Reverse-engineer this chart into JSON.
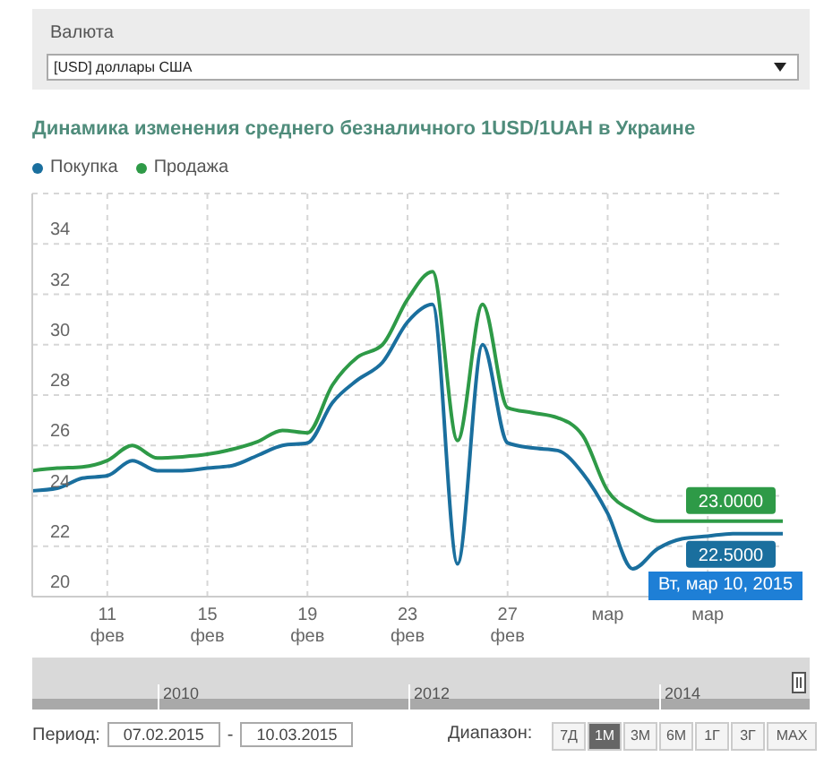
{
  "chart_data": {
    "type": "line",
    "title": "Динамика изменения среднего безналичного 1USD/1UAH в Украине",
    "categories": [
      null,
      null,
      null,
      "11 фев",
      null,
      null,
      null,
      "15 фев",
      null,
      null,
      null,
      "19 фев",
      null,
      null,
      null,
      "23 фев",
      null,
      null,
      null,
      "27 фев",
      null,
      null,
      null,
      "мар",
      null,
      null,
      null,
      "мар",
      null,
      null,
      null
    ],
    "series": [
      {
        "name": "Покупка",
        "color": "#1a6f9e",
        "values": [
          24.2,
          24.3,
          24.7,
          24.8,
          25.4,
          25.0,
          25.0,
          25.1,
          25.2,
          25.6,
          26.0,
          26.1,
          27.7,
          28.6,
          29.3,
          30.9,
          31.6,
          21.3,
          30.0,
          26.1,
          25.9,
          25.8,
          24.9,
          23.3,
          21.1,
          21.9,
          22.3,
          22.4,
          22.5,
          22.5,
          22.5
        ],
        "value_labels": [
          null,
          null,
          null,
          null,
          null,
          null,
          null,
          null,
          null,
          null,
          null,
          null,
          null,
          null,
          null,
          null,
          null,
          null,
          null,
          null,
          null,
          null,
          null,
          null,
          null,
          null,
          null,
          null,
          null,
          null,
          "22.5000"
        ]
      },
      {
        "name": "Продажа",
        "color": "#2e9a47",
        "values": [
          25.0,
          25.1,
          25.15,
          25.4,
          26.0,
          25.5,
          25.55,
          25.65,
          25.85,
          26.15,
          26.6,
          26.5,
          28.4,
          29.5,
          30.0,
          31.8,
          32.9,
          26.2,
          31.6,
          27.5,
          27.3,
          27.1,
          26.4,
          24.2,
          23.4,
          23.0,
          23.0,
          23.0,
          23.0,
          23.0,
          23.0
        ],
        "value_labels": [
          null,
          null,
          null,
          null,
          null,
          null,
          null,
          null,
          null,
          null,
          null,
          null,
          null,
          null,
          null,
          null,
          null,
          null,
          null,
          null,
          null,
          null,
          null,
          null,
          null,
          null,
          null,
          null,
          null,
          null,
          "23.0000"
        ]
      }
    ],
    "ylim": [
      20,
      36
    ],
    "yticks": [
      20,
      22,
      24,
      26,
      28,
      30,
      32,
      34
    ],
    "grid": true,
    "legend": "top left",
    "marker": "none",
    "line_style": "solid",
    "annotations": [
      "Валюта",
      "[USD] доллары США",
      "Вт, мар 10, 2015",
      "2010",
      "2012",
      "2014",
      "Период:",
      "07.02.2015",
      "-",
      "10.03.2015",
      "Диапазон:",
      "7Д",
      "1М",
      "3М",
      "6М",
      "1Г",
      "3Г",
      "MAX"
    ]
  }
}
